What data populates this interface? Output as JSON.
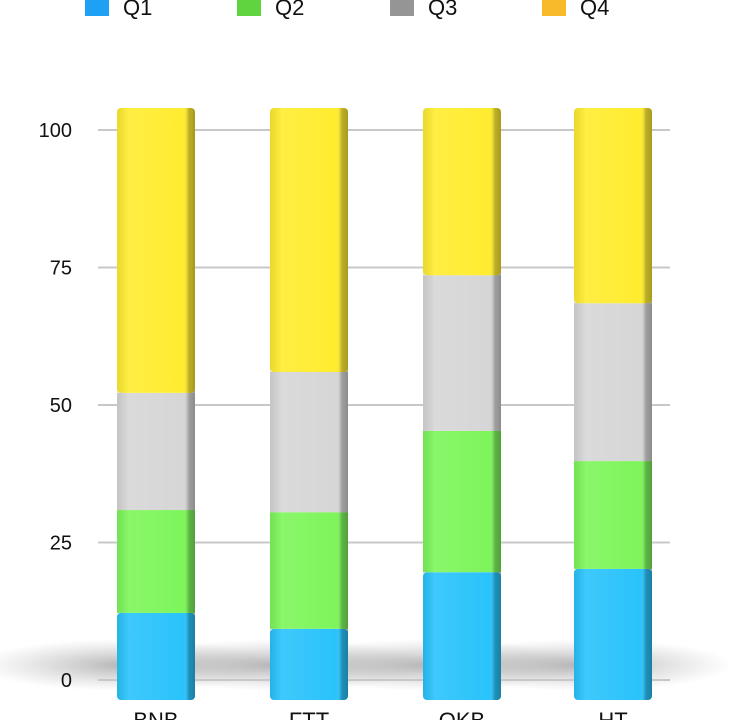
{
  "chart_data": {
    "type": "bar",
    "stacked": true,
    "categories": [
      "BNB",
      "FTT",
      "OKB",
      "HT"
    ],
    "series": [
      {
        "name": "Q1",
        "values": [
          12.2,
          9.3,
          19.6,
          20.2
        ],
        "color": "#29c3fb",
        "legend_color": "#1ea0f5"
      },
      {
        "name": "Q2",
        "values": [
          18.7,
          21.2,
          25.7,
          19.6
        ],
        "color": "#7df55a",
        "legend_color": "#5fd43f"
      },
      {
        "name": "Q3",
        "values": [
          21.3,
          25.5,
          28.3,
          28.7
        ],
        "color": "#d6d6d6",
        "legend_color": "#959595"
      },
      {
        "name": "Q4",
        "values": [
          47.8,
          44.0,
          26.4,
          31.5
        ],
        "color": "#ffec2f",
        "legend_color": "#f8b92a"
      }
    ],
    "yticks": [
      "0",
      "25",
      "50",
      "75",
      "100"
    ],
    "ylim": [
      0,
      100
    ],
    "grid": true,
    "legend": "top",
    "title": "",
    "xlabel": "",
    "ylabel": ""
  }
}
